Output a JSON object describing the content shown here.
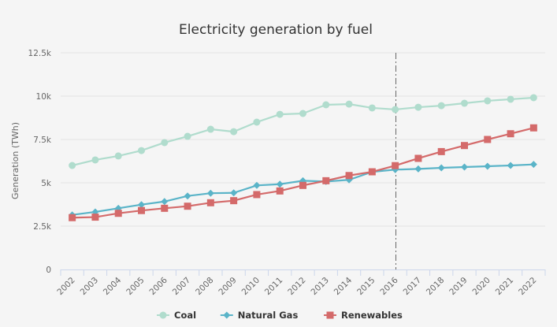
{
  "chart_data": {
    "type": "line",
    "title": "Electricity generation by fuel",
    "xlabel": "",
    "ylabel": "Generation (TWh)",
    "ylim": [
      0,
      12500
    ],
    "yticks": [
      0,
      2500,
      5000,
      7500,
      10000,
      12500
    ],
    "ytick_labels": [
      "0",
      "2.5k",
      "5k",
      "7.5k",
      "10k",
      "12.5k"
    ],
    "grid": true,
    "legend_position": "bottom-center",
    "categories": [
      "2002",
      "2003",
      "2004",
      "2005",
      "2006",
      "2007",
      "2008",
      "2009",
      "2010",
      "2011",
      "2012",
      "2013",
      "2014",
      "2015",
      "2016",
      "2017",
      "2018",
      "2019",
      "2020",
      "2021",
      "2022"
    ],
    "plot_line": {
      "category": "2016",
      "style": "dash-dot",
      "color": "#666666"
    },
    "series": [
      {
        "name": "Coal",
        "color": "#b0dccd",
        "marker": "circle",
        "values": [
          6000,
          6320,
          6550,
          6860,
          7320,
          7680,
          8090,
          7950,
          8500,
          8950,
          9000,
          9500,
          9540,
          9320,
          9230,
          9360,
          9450,
          9590,
          9730,
          9820,
          9910
        ]
      },
      {
        "name": "Natural Gas",
        "color": "#5ab4c8",
        "marker": "diamond",
        "values": [
          3150,
          3320,
          3530,
          3740,
          3920,
          4240,
          4400,
          4420,
          4850,
          4920,
          5120,
          5075,
          5170,
          5630,
          5760,
          5800,
          5865,
          5910,
          5955,
          6000,
          6060
        ]
      },
      {
        "name": "Renewables",
        "color": "#d46a6a",
        "marker": "square",
        "values": [
          2990,
          3020,
          3240,
          3400,
          3530,
          3650,
          3850,
          3970,
          4320,
          4530,
          4850,
          5120,
          5420,
          5635,
          5990,
          6410,
          6800,
          7150,
          7500,
          7830,
          8170
        ]
      }
    ]
  }
}
